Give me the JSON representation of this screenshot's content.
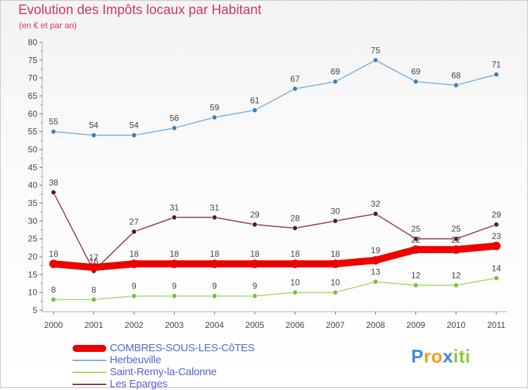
{
  "chart_data": {
    "type": "line",
    "title": "Evolution des Impôts locaux par Habitant",
    "subtitle": "(en € et par an)",
    "xlabel": "",
    "ylabel": "",
    "x": [
      "2000",
      "2001",
      "2002",
      "2003",
      "2004",
      "2005",
      "2006",
      "2007",
      "2008",
      "2009",
      "2010",
      "2011"
    ],
    "ylim": [
      5,
      80
    ],
    "yticks": [
      "5",
      "10",
      "15",
      "20",
      "25",
      "30",
      "35",
      "40",
      "45",
      "50",
      "55",
      "60",
      "65",
      "70",
      "75",
      "80"
    ],
    "series": [
      {
        "name": "Herbeuville",
        "color": "#7ab0d8",
        "dot": "#3a80c0",
        "values": [
          55,
          54,
          54,
          56,
          59,
          61,
          67,
          69,
          75,
          69,
          68,
          71
        ]
      },
      {
        "name": "Les Eparges",
        "color": "#8c3a40",
        "dot": "#5a1a1e",
        "values": [
          38,
          16,
          27,
          31,
          31,
          29,
          28,
          30,
          32,
          25,
          25,
          29
        ]
      },
      {
        "name": "Saint-Remy-la-Calonne",
        "color": "#a4d86c",
        "dot": "#78c040",
        "values": [
          8,
          8,
          9,
          9,
          9,
          9,
          10,
          10,
          13,
          12,
          12,
          14
        ]
      },
      {
        "name": "COMBRES-SOUS-LES-CôTES",
        "color": "#ee0000",
        "dot": "#ee0000",
        "values": [
          18,
          17,
          18,
          18,
          18,
          18,
          18,
          18,
          19,
          22,
          22,
          23
        ]
      }
    ],
    "legend": [
      "COMBRES-SOUS-LES-CôTES",
      "Herbeuville",
      "Saint-Remy-la-Calonne",
      "Les Eparges"
    ],
    "legend_colors": [
      "#ee0000",
      "#7ab0d8",
      "#a4d86c",
      "#8c3a40"
    ]
  },
  "logo": {
    "letters": [
      "P",
      "r",
      "o",
      "x",
      "i",
      "t",
      "i"
    ],
    "colors": [
      "#3c8bd8",
      "#f29b16",
      "#f29b16",
      "#3c8bd8",
      "#8fc83c",
      "#8fc83c",
      "#8fc83c"
    ]
  }
}
